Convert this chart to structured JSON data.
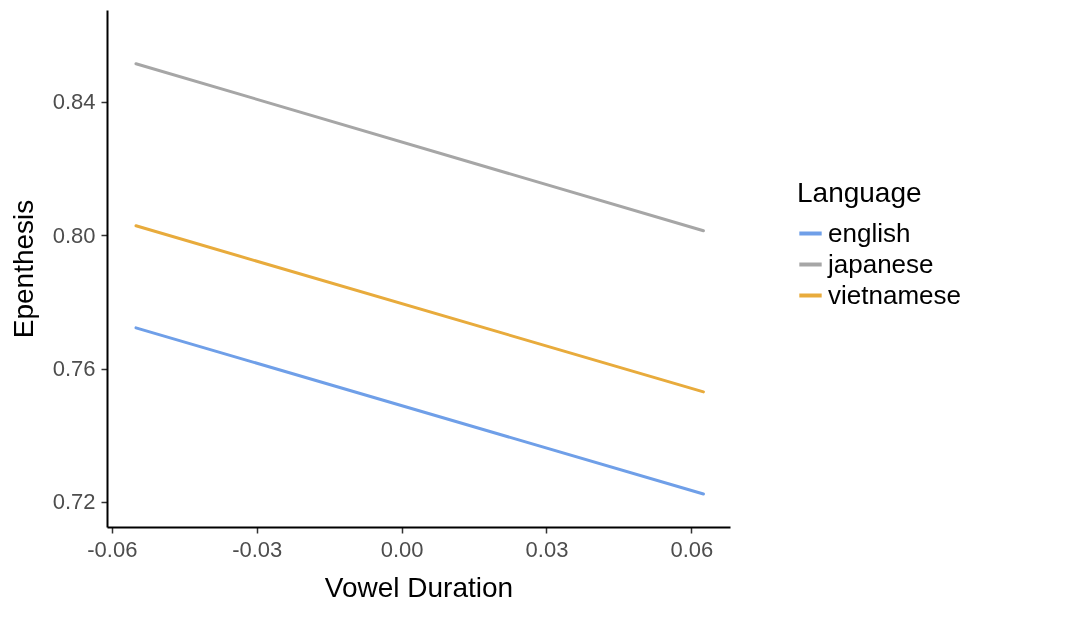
{
  "chart_data": {
    "type": "line",
    "xlabel": "Vowel Duration",
    "ylabel": "Epenthesis",
    "legend_title": "Language",
    "legend": "right",
    "grid": false,
    "marker": "none",
    "line_style": "solid",
    "x": [
      -0.055,
      0.0625
    ],
    "xlim": [
      -0.061,
      0.068
    ],
    "xticks": [
      {
        "value": -0.06,
        "label": "-0.06"
      },
      {
        "value": -0.03,
        "label": "-0.03"
      },
      {
        "value": 0,
        "label": "0.00"
      },
      {
        "value": 0.03,
        "label": "0.03"
      },
      {
        "value": 0.06,
        "label": "0.06"
      }
    ],
    "ylim": [
      0.7125,
      0.8675
    ],
    "yticks": [
      0.72,
      0.76,
      {
        "value": 0.8,
        "label": "0.80"
      },
      0.84
    ],
    "series": [
      {
        "name": "english",
        "color": "#6f9fe8",
        "values": [
          0.7722,
          0.7224
        ]
      },
      {
        "name": "japanese",
        "color": "#a6a6a6",
        "values": [
          0.8514,
          0.8013
        ]
      },
      {
        "name": "vietnamese",
        "color": "#e8ab3c",
        "values": [
          0.8028,
          0.753
        ]
      }
    ]
  }
}
